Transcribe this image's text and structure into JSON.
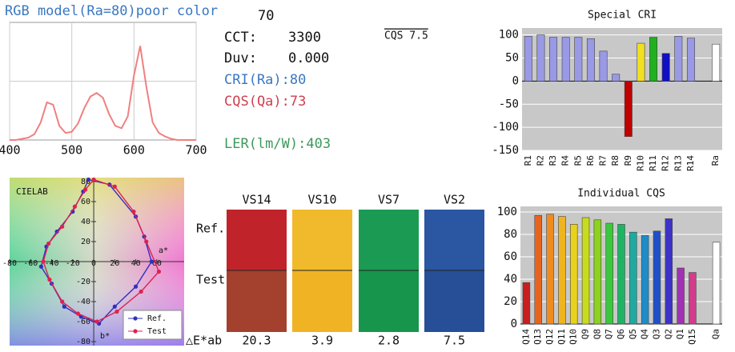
{
  "info": {
    "top": "70",
    "cct_label": "CCT:",
    "cct_value": "3300",
    "duv_label": "Duv:",
    "duv_value": "0.000",
    "cri": "CRI(Ra):80",
    "cqs": "CQS(Qa):73",
    "ler": "LER(lm/W):403",
    "cqs_version": "CQS 7.5"
  },
  "swatches": {
    "ref_label": "Ref.",
    "test_label": "Test",
    "delta_label": "△E*ab",
    "columns": [
      {
        "name": "VS14",
        "ref_color": "#c0242a",
        "test_color": "#a3402e",
        "delta": "20.3"
      },
      {
        "name": "VS10",
        "ref_color": "#f1ba2c",
        "test_color": "#efb324",
        "delta": "3.9"
      },
      {
        "name": "VS7",
        "ref_color": "#1a9a52",
        "test_color": "#17954c",
        "delta": "2.8"
      },
      {
        "name": "VS2",
        "ref_color": "#2a56a2",
        "test_color": "#264f98",
        "delta": "7.5"
      }
    ]
  },
  "chart_data": [
    {
      "type": "line",
      "title": "RGB model(Ra=80)poor color",
      "x": [
        400,
        410,
        420,
        430,
        440,
        450,
        460,
        470,
        480,
        490,
        500,
        510,
        520,
        530,
        540,
        550,
        560,
        570,
        580,
        590,
        600,
        610,
        620,
        630,
        640,
        650,
        660,
        670,
        680,
        690,
        700
      ],
      "series": [
        {
          "color": "#f08080",
          "values": [
            0,
            0,
            0.01,
            0.02,
            0.05,
            0.15,
            0.32,
            0.3,
            0.12,
            0.06,
            0.07,
            0.14,
            0.27,
            0.37,
            0.4,
            0.36,
            0.22,
            0.12,
            0.1,
            0.2,
            0.55,
            0.8,
            0.45,
            0.15,
            0.06,
            0.03,
            0.01,
            0,
            0,
            0,
            0
          ]
        }
      ],
      "xlim": [
        400,
        700
      ],
      "xticks": [
        400,
        500,
        600,
        700
      ],
      "ylim": [
        0,
        1
      ],
      "grid": true
    },
    {
      "type": "bar",
      "title": "Special CRI",
      "categories": [
        "R1",
        "R2",
        "R3",
        "R4",
        "R5",
        "R6",
        "R7",
        "R8",
        "R9",
        "R10",
        "R11",
        "R12",
        "R13",
        "R14",
        null,
        "Ra"
      ],
      "values": [
        97,
        100,
        95,
        95,
        95,
        92,
        65,
        15,
        -120,
        82,
        95,
        60,
        97,
        93,
        null,
        80
      ],
      "colors": [
        "#9999e6",
        "#9999e6",
        "#9999e6",
        "#9999e6",
        "#9999e6",
        "#9999e6",
        "#9999e6",
        "#9999e6",
        "#c00000",
        "#f0e020",
        "#20b020",
        "#1010c0",
        "#9999e6",
        "#9999e6",
        null,
        "#ffffff"
      ],
      "ylim": [
        -150,
        115
      ],
      "yticks": [
        100,
        50,
        0,
        -50,
        -100,
        -150
      ],
      "grid": true
    },
    {
      "type": "bar",
      "title": "Individual CQS",
      "categories": [
        "Q14",
        "Q13",
        "Q12",
        "Q11",
        "Q10",
        "Q9",
        "Q8",
        "Q7",
        "Q6",
        "Q5",
        "Q4",
        "Q3",
        "Q2",
        "Q1",
        "Q15",
        null,
        "Qa"
      ],
      "values": [
        37,
        97,
        98,
        96,
        89,
        95,
        93,
        90,
        89,
        82,
        79,
        83,
        94,
        50,
        46,
        null,
        73
      ],
      "colors": [
        "#c81e1e",
        "#e8641e",
        "#f08c1e",
        "#f0b41e",
        "#e8d21e",
        "#c8dc1e",
        "#8cd21e",
        "#3cc83c",
        "#1eb464",
        "#1eaaa0",
        "#1e8cc8",
        "#1e50c8",
        "#3c32c8",
        "#a032b4",
        "#d23c8c",
        null,
        "#ffffff"
      ],
      "ylim": [
        0,
        105
      ],
      "yticks": [
        0,
        20,
        40,
        60,
        80,
        100
      ],
      "grid": true
    },
    {
      "type": "scatter",
      "title": "CIELAB",
      "xlabel": "a*",
      "ylabel": "b*",
      "xlim": [
        -80,
        86
      ],
      "ylim": [
        -84,
        84
      ],
      "xticks": [
        -80,
        -60,
        -40,
        -20,
        0,
        20,
        40,
        60
      ],
      "yticks": [
        80,
        60,
        40,
        20,
        -20,
        -40,
        -60,
        -80
      ],
      "legend": "lower right",
      "series": [
        {
          "name": "Ref.",
          "color": "#3030c0",
          "x": [
            -5,
            15,
            40,
            48,
            55,
            40,
            20,
            5,
            -12,
            -28,
            -40,
            -50,
            -45,
            -35,
            -20,
            -10
          ],
          "values": [
            82,
            77,
            45,
            25,
            0,
            -25,
            -45,
            -62,
            -55,
            -45,
            -22,
            -5,
            15,
            30,
            50,
            70
          ]
        },
        {
          "name": "Test",
          "color": "#e02050",
          "x": [
            0,
            20,
            38,
            50,
            62,
            45,
            22,
            3,
            -15,
            -30,
            -42,
            -48,
            -43,
            -30,
            -18,
            -8
          ],
          "values": [
            82,
            75,
            50,
            20,
            -10,
            -30,
            -50,
            -60,
            -52,
            -40,
            -18,
            0,
            18,
            35,
            55,
            72
          ]
        }
      ]
    }
  ]
}
